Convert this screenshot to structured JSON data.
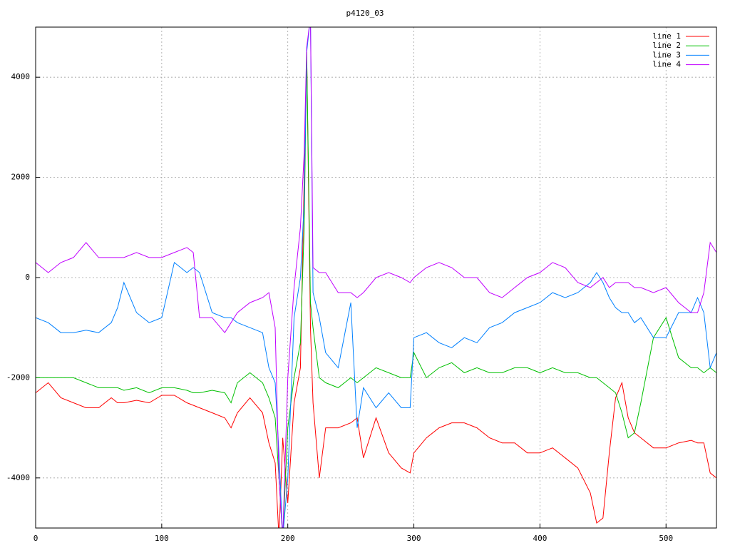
{
  "chart_data": {
    "type": "line",
    "title": "p4120_03",
    "x": [
      0,
      10,
      20,
      30,
      40,
      50,
      60,
      65,
      70,
      80,
      90,
      100,
      110,
      120,
      125,
      130,
      140,
      150,
      155,
      160,
      170,
      180,
      185,
      190,
      193,
      196,
      200,
      205,
      210,
      213,
      215,
      218,
      220,
      225,
      230,
      240,
      250,
      255,
      260,
      270,
      280,
      290,
      297,
      300,
      310,
      320,
      330,
      340,
      350,
      360,
      370,
      380,
      390,
      400,
      410,
      420,
      430,
      440,
      445,
      450,
      455,
      460,
      465,
      470,
      475,
      480,
      490,
      500,
      510,
      520,
      525,
      530,
      535,
      540
    ],
    "series": [
      {
        "name": "line 1",
        "color": "#ff0000",
        "values": [
          -2300,
          -2100,
          -2400,
          -2500,
          -2600,
          -2600,
          -2400,
          -2500,
          -2500,
          -2450,
          -2500,
          -2350,
          -2350,
          -2500,
          -2550,
          -2600,
          -2700,
          -2800,
          -3000,
          -2700,
          -2400,
          -2700,
          -3300,
          -3700,
          -5200,
          -3200,
          -4500,
          -2500,
          -1800,
          2000,
          4500,
          -1000,
          -2500,
          -4000,
          -3000,
          -3000,
          -2900,
          -2800,
          -3600,
          -2800,
          -3500,
          -3800,
          -3900,
          -3500,
          -3200,
          -3000,
          -2900,
          -2900,
          -3000,
          -3200,
          -3300,
          -3300,
          -3500,
          -3500,
          -3400,
          -3600,
          -3800,
          -4300,
          -4900,
          -4800,
          -3500,
          -2400,
          -2100,
          -2800,
          -3100,
          -3200,
          -3400,
          -3400,
          -3300,
          -3250,
          -3300,
          -3300,
          -3900,
          -4000
        ]
      },
      {
        "name": "line 2",
        "color": "#00c000",
        "values": [
          -2000,
          -2000,
          -2000,
          -2000,
          -2100,
          -2200,
          -2200,
          -2200,
          -2250,
          -2200,
          -2300,
          -2200,
          -2200,
          -2250,
          -2300,
          -2300,
          -2250,
          -2300,
          -2500,
          -2100,
          -1900,
          -2100,
          -2400,
          -2800,
          -4000,
          -5200,
          -3000,
          -2000,
          -1300,
          1000,
          4500,
          -500,
          -1000,
          -2000,
          -2100,
          -2200,
          -2000,
          -2100,
          -2000,
          -1800,
          -1900,
          -2000,
          -2000,
          -1500,
          -2000,
          -1800,
          -1700,
          -1900,
          -1800,
          -1900,
          -1900,
          -1800,
          -1800,
          -1900,
          -1800,
          -1900,
          -1900,
          -2000,
          -2000,
          -2100,
          -2200,
          -2300,
          -2700,
          -3200,
          -3100,
          -2500,
          -1200,
          -800,
          -1600,
          -1800,
          -1800,
          -1900,
          -1800,
          -1900
        ]
      },
      {
        "name": "line 3",
        "color": "#0080ff",
        "values": [
          -800,
          -900,
          -1100,
          -1100,
          -1050,
          -1100,
          -900,
          -600,
          -100,
          -700,
          -900,
          -800,
          300,
          100,
          200,
          100,
          -700,
          -800,
          -800,
          -900,
          -1000,
          -1100,
          -1800,
          -2100,
          -3500,
          -5200,
          -4000,
          -800,
          0,
          1500,
          4500,
          5200,
          -300,
          -800,
          -1500,
          -1800,
          -500,
          -3000,
          -2200,
          -2600,
          -2300,
          -2600,
          -2600,
          -1200,
          -1100,
          -1300,
          -1400,
          -1200,
          -1300,
          -1000,
          -900,
          -700,
          -600,
          -500,
          -300,
          -400,
          -300,
          -100,
          100,
          -100,
          -400,
          -600,
          -700,
          -700,
          -900,
          -800,
          -1200,
          -1200,
          -700,
          -700,
          -400,
          -700,
          -1800,
          -1500
        ]
      },
      {
        "name": "line 4",
        "color": "#c000ff",
        "values": [
          300,
          100,
          300,
          400,
          700,
          400,
          400,
          400,
          400,
          500,
          400,
          400,
          500,
          600,
          500,
          -800,
          -800,
          -1100,
          -900,
          -700,
          -500,
          -400,
          -300,
          -1000,
          -4000,
          -5200,
          -2000,
          -200,
          1000,
          2500,
          4600,
          5200,
          200,
          100,
          100,
          -300,
          -300,
          -400,
          -300,
          0,
          100,
          0,
          -100,
          0,
          200,
          300,
          200,
          0,
          0,
          -300,
          -400,
          -200,
          0,
          100,
          300,
          200,
          -100,
          -200,
          -100,
          0,
          -200,
          -100,
          -100,
          -100,
          -200,
          -200,
          -300,
          -200,
          -500,
          -700,
          -700,
          -300,
          700,
          500
        ]
      }
    ],
    "xlim": [
      0,
      540
    ],
    "xticks": [
      0,
      100,
      200,
      300,
      400,
      500
    ],
    "ylim": [
      -5000,
      5000
    ],
    "yticks": [
      -4000,
      -2000,
      0,
      2000,
      4000
    ],
    "grid": true,
    "legend": "top-right"
  }
}
